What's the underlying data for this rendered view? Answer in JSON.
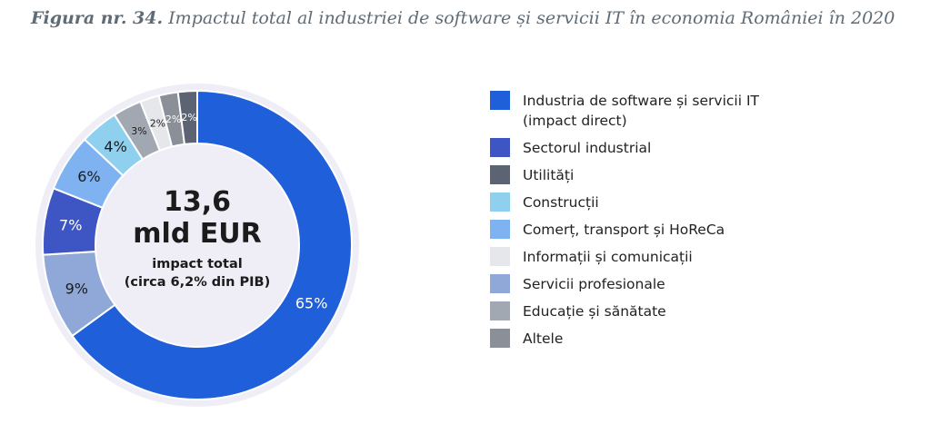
{
  "caption": {
    "figure": "Figura nr. 34.",
    "title": "Impactul total al industriei de software și servicii IT în economia României în 2020"
  },
  "center": {
    "value": "13,6",
    "unit": "mld EUR",
    "label": "impact total",
    "note": "(circa 6,2% din PIB)"
  },
  "chart_data": {
    "type": "pie",
    "donut": true,
    "total_label": "13,6 mld EUR",
    "slices": [
      {
        "name": "Industria de software și servicii IT (impact direct)",
        "value": 65,
        "label": "65%",
        "color": "#1f5fd9"
      },
      {
        "name": "Servicii profesionale",
        "value": 9,
        "label": "9%",
        "color": "#8fa8d8"
      },
      {
        "name": "Sectorul industrial",
        "value": 7,
        "label": "7%",
        "color": "#3e55c4"
      },
      {
        "name": "Comerț, transport și HoReCa",
        "value": 6,
        "label": "6%",
        "color": "#7fb2f0"
      },
      {
        "name": "Construcții",
        "value": 4,
        "label": "4%",
        "color": "#8fd0ef"
      },
      {
        "name": "Educație și sănătate",
        "value": 3,
        "label": "3%",
        "color": "#a2a8b2"
      },
      {
        "name": "Informații și comunicații",
        "value": 2,
        "label": "2%",
        "color": "#e6e7eb"
      },
      {
        "name": "Altele",
        "value": 2,
        "label": "2%",
        "color": "#8a8f98"
      },
      {
        "name": "Utilități",
        "value": 2,
        "label": "2%",
        "color": "#5c6373"
      }
    ]
  },
  "legend": [
    {
      "label": "Industria de software și servicii IT (impact direct)",
      "color": "#1f5fd9"
    },
    {
      "label": "Sectorul industrial",
      "color": "#3e55c4"
    },
    {
      "label": "Utilități",
      "color": "#5c6373"
    },
    {
      "label": "Construcții",
      "color": "#8fd0ef"
    },
    {
      "label": "Comerț, transport și HoReCa",
      "color": "#7fb2f0"
    },
    {
      "label": "Informații și comunicații",
      "color": "#e6e7eb"
    },
    {
      "label": "Servicii profesionale",
      "color": "#8fa8d8"
    },
    {
      "label": "Educație și sănătate",
      "color": "#a2a8b2"
    },
    {
      "label": "Altele",
      "color": "#8a8f98"
    }
  ]
}
